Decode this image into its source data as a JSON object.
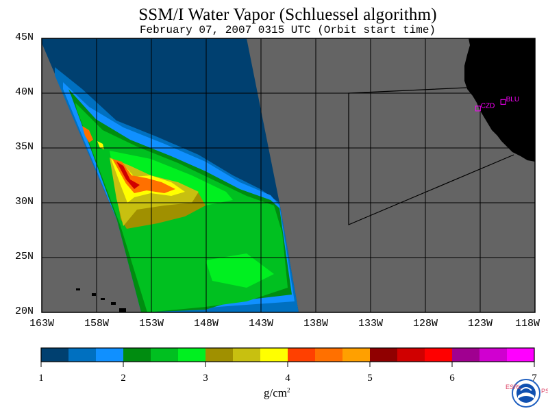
{
  "title": "SSM/I Water Vapor (Schluessel algorithm)",
  "subtitle": "February 07, 2007  0315 UTC  (Orbit start time)",
  "latitude_labels": [
    "45N",
    "40N",
    "35N",
    "30N",
    "25N",
    "20N"
  ],
  "longitude_labels": [
    "163W",
    "158W",
    "153W",
    "148W",
    "143W",
    "138W",
    "133W",
    "128W",
    "123W",
    "118W"
  ],
  "colorbar": {
    "tick_labels": [
      "1",
      "2",
      "3",
      "4",
      "5",
      "6",
      "7"
    ],
    "unit_base": "g/cm",
    "unit_exp": "2",
    "colors": [
      "#004070",
      "#0070c0",
      "#1090ff",
      "#008c10",
      "#00c020",
      "#00f020",
      "#a09000",
      "#c8c010",
      "#ffff00",
      "#ff4000",
      "#ff7000",
      "#ffa000",
      "#900000",
      "#d00000",
      "#ff0000",
      "#a00090",
      "#d000d0",
      "#ff00ff"
    ]
  },
  "stations": [
    {
      "label": "CZD",
      "lat": 38.6,
      "lon": -123.2
    },
    {
      "label": "BLU",
      "lat": 39.2,
      "lon": -120.9
    }
  ],
  "logo": {
    "left_text": "ESRL",
    "right_text": "PSD",
    "name": "NOAA"
  },
  "map_colors": {
    "ocean": "#646464",
    "land": "#000000",
    "grid": "#000000",
    "station": "#ff00ff"
  }
}
